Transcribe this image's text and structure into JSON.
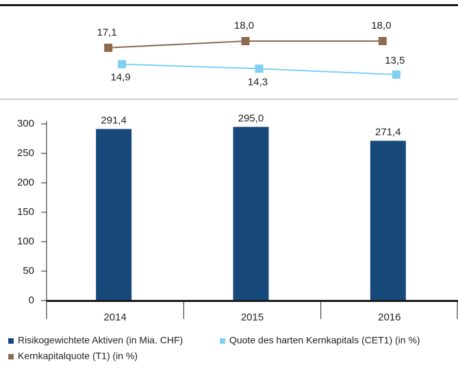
{
  "chart_data": [
    {
      "type": "line",
      "series": [
        {
          "name": "Quote des harten Kernkapitals (CET1) (in %)",
          "color": "#7fd0f2",
          "values": [
            14.9,
            14.3,
            13.5
          ],
          "value_labels": [
            "14,9",
            "14,3",
            "13,5"
          ]
        },
        {
          "name": "Kernkapitalquote (T1) (in %)",
          "color": "#8c6b50",
          "values": [
            17.1,
            18.0,
            18.0
          ],
          "value_labels": [
            "17,1",
            "18,0",
            "18,0"
          ]
        }
      ]
    },
    {
      "type": "bar",
      "categories": [
        "2014",
        "2015",
        "2016"
      ],
      "series": [
        {
          "name": "Risikogewichtete Aktiven (in Mia. CHF)",
          "color": "#17497a",
          "values": [
            291.4,
            295.0,
            271.4
          ],
          "value_labels": [
            "291,4",
            "295,0",
            "271,4"
          ]
        }
      ],
      "ylim": [
        0,
        300
      ],
      "yticks": [
        0,
        50,
        100,
        150,
        200,
        250,
        300
      ]
    }
  ]
}
